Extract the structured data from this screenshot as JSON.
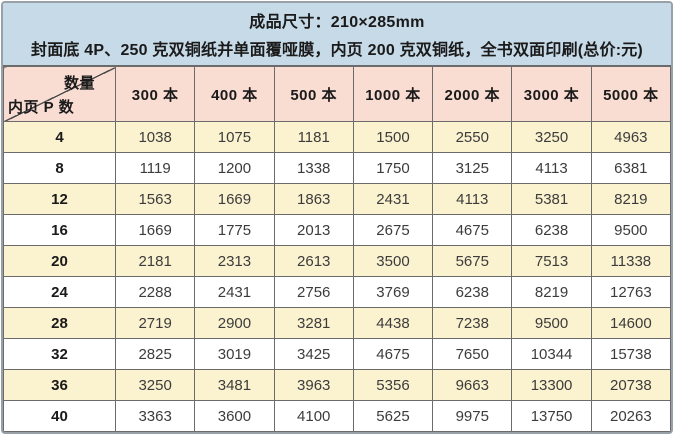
{
  "header": {
    "line1": "成品尺寸：210×285mm",
    "line2": "封面底 4P、250 克双铜纸并单面覆哑膜，内页 200 克双铜纸，全书双面印刷(总价:元)"
  },
  "chart_data": {
    "type": "table",
    "title": "成品尺寸：210×285mm",
    "subtitle": "封面底 4P、250 克双铜纸并单面覆哑膜，内页 200 克双铜纸，全书双面印刷(总价:元)",
    "corner": {
      "top_right": "数量",
      "bottom_left": "内页 P 数"
    },
    "columns": [
      "300 本",
      "400 本",
      "500 本",
      "1000 本",
      "2000 本",
      "3000 本",
      "5000 本"
    ],
    "rows": [
      {
        "pages": "4",
        "values": [
          1038,
          1075,
          1181,
          1500,
          2550,
          3250,
          4963
        ]
      },
      {
        "pages": "8",
        "values": [
          1119,
          1200,
          1338,
          1750,
          3125,
          4113,
          6381
        ]
      },
      {
        "pages": "12",
        "values": [
          1563,
          1669,
          1863,
          2431,
          4113,
          5381,
          8219
        ]
      },
      {
        "pages": "16",
        "values": [
          1669,
          1775,
          2013,
          2675,
          4675,
          6238,
          9500
        ]
      },
      {
        "pages": "20",
        "values": [
          2181,
          2313,
          2613,
          3500,
          5675,
          7513,
          11338
        ]
      },
      {
        "pages": "24",
        "values": [
          2288,
          2431,
          2756,
          3769,
          6238,
          8219,
          12763
        ]
      },
      {
        "pages": "28",
        "values": [
          2719,
          2900,
          3281,
          4438,
          7238,
          9500,
          14600
        ]
      },
      {
        "pages": "32",
        "values": [
          2825,
          3019,
          3425,
          4675,
          7650,
          10344,
          15738
        ]
      },
      {
        "pages": "36",
        "values": [
          3250,
          3481,
          3963,
          5356,
          9663,
          13300,
          20738
        ]
      },
      {
        "pages": "40",
        "values": [
          3363,
          3600,
          4100,
          5625,
          9975,
          13750,
          20263
        ]
      }
    ]
  },
  "colors": {
    "header_bg": "#c7dae7",
    "column_header_bg": "#f9dcd2",
    "row_alt_bg": "#fbf2cf",
    "row_bg": "#ffffff",
    "grid_border": "#6b6b6b",
    "outer_border": "#98a1a7",
    "text": "#1a1a1a",
    "number_text": "#3c3c3c"
  }
}
